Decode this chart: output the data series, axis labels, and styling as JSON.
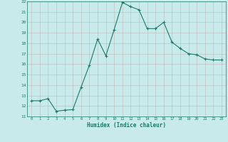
{
  "x": [
    0,
    1,
    2,
    3,
    4,
    5,
    6,
    7,
    8,
    9,
    10,
    11,
    12,
    13,
    14,
    15,
    16,
    17,
    18,
    19,
    20,
    21,
    22,
    23
  ],
  "y": [
    12.5,
    12.5,
    12.7,
    11.5,
    11.6,
    11.65,
    13.8,
    15.9,
    18.4,
    16.8,
    19.3,
    21.9,
    21.5,
    21.2,
    19.4,
    19.4,
    20.0,
    18.1,
    17.5,
    17.0,
    16.9,
    16.5,
    16.4,
    16.4
  ],
  "xlabel": "Humidex (Indice chaleur)",
  "ylim": [
    11,
    22
  ],
  "xlim": [
    -0.5,
    23.5
  ],
  "yticks": [
    11,
    12,
    13,
    14,
    15,
    16,
    17,
    18,
    19,
    20,
    21,
    22
  ],
  "xticks": [
    0,
    1,
    2,
    3,
    4,
    5,
    6,
    7,
    8,
    9,
    10,
    11,
    12,
    13,
    14,
    15,
    16,
    17,
    18,
    19,
    20,
    21,
    22,
    23
  ],
  "line_color": "#1a7a6a",
  "marker": "+",
  "bg_color": "#c8eaea",
  "grid_color": "#c0b8b8",
  "title": ""
}
